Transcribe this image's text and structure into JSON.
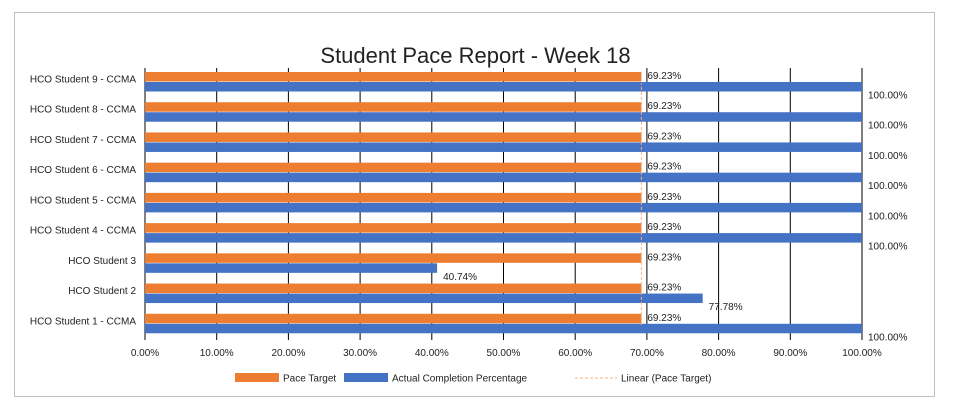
{
  "chart_data": {
    "type": "bar",
    "orientation": "horizontal",
    "title": "Student Pace Report - Week 18",
    "categories": [
      "HCO Student 1 - CCMA",
      "HCO Student 2",
      "HCO Student 3",
      "HCO Student 4 - CCMA",
      "HCO Student 5 - CCMA",
      "HCO Student 6 - CCMA",
      "HCO Student 7 - CCMA",
      "HCO Student 8 - CCMA",
      "HCO Student 9 - CCMA"
    ],
    "series": [
      {
        "name": "Pace Target",
        "color": "#ed7d31",
        "values": [
          69.23,
          69.23,
          69.23,
          69.23,
          69.23,
          69.23,
          69.23,
          69.23,
          69.23
        ],
        "labels": [
          "69.23%",
          "69.23%",
          "69.23%",
          "69.23%",
          "69.23%",
          "69.23%",
          "69.23%",
          "69.23%",
          "69.23%"
        ]
      },
      {
        "name": "Actual Completion Percentage",
        "color": "#4472c4",
        "values": [
          100,
          77.78,
          40.74,
          100,
          100,
          100,
          100,
          100,
          100
        ],
        "labels": [
          "100.00%",
          "77.78%",
          "40.74%",
          "100.00%",
          "100.00%",
          "100.00%",
          "100.00%",
          "100.00%",
          "100.00%"
        ]
      }
    ],
    "trendline": {
      "name": "Linear (Pace Target)",
      "color": "#f4b183"
    },
    "xlim": [
      0,
      100
    ],
    "xticks": [
      "0.00%",
      "10.00%",
      "20.00%",
      "30.00%",
      "40.00%",
      "50.00%",
      "60.00%",
      "70.00%",
      "80.00%",
      "90.00%",
      "100.00%"
    ],
    "grid": true,
    "legend": "bottom"
  }
}
